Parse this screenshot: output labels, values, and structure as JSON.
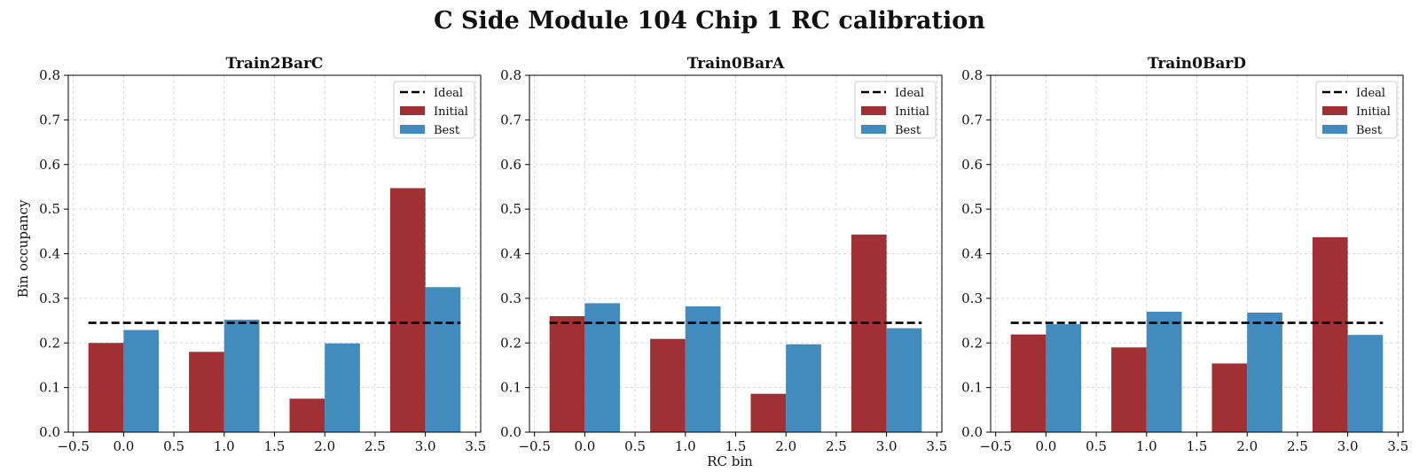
{
  "figure": {
    "title": "C Side Module 104 Chip 1 RC calibration",
    "xlabel": "RC bin",
    "ylabel": "Bin occupancy"
  },
  "colors": {
    "initial": "#a03033",
    "best": "#428bbf",
    "ideal": "#000000",
    "grid": "#cccccc"
  },
  "chart_data": [
    {
      "type": "bar",
      "title": "Train2BarC",
      "x": [
        0,
        1,
        2,
        3
      ],
      "xlim": [
        -0.55,
        3.55
      ],
      "ylim": [
        0,
        0.8
      ],
      "xticks": [
        "−0.5",
        "0.0",
        "0.5",
        "1.0",
        "1.5",
        "2.0",
        "2.5",
        "3.0",
        "3.5"
      ],
      "yticks": [
        "0.0",
        "0.1",
        "0.2",
        "0.3",
        "0.4",
        "0.5",
        "0.6",
        "0.7",
        "0.8"
      ],
      "grid": true,
      "legend": "top-right",
      "ideal": 0.245,
      "series": [
        {
          "name": "Initial",
          "values": [
            0.2,
            0.18,
            0.075,
            0.547
          ]
        },
        {
          "name": "Best",
          "values": [
            0.229,
            0.252,
            0.199,
            0.325
          ]
        }
      ],
      "ideal_label": "Ideal"
    },
    {
      "type": "bar",
      "title": "Train0BarA",
      "x": [
        0,
        1,
        2,
        3
      ],
      "xlim": [
        -0.55,
        3.55
      ],
      "ylim": [
        0,
        0.8
      ],
      "xticks": [
        "−0.5",
        "0.0",
        "0.5",
        "1.0",
        "1.5",
        "2.0",
        "2.5",
        "3.0",
        "3.5"
      ],
      "yticks": [
        "0.0",
        "0.1",
        "0.2",
        "0.3",
        "0.4",
        "0.5",
        "0.6",
        "0.7",
        "0.8"
      ],
      "grid": true,
      "legend": "top-right",
      "ideal": 0.245,
      "series": [
        {
          "name": "Initial",
          "values": [
            0.26,
            0.209,
            0.086,
            0.443
          ]
        },
        {
          "name": "Best",
          "values": [
            0.289,
            0.282,
            0.197,
            0.233
          ]
        }
      ],
      "ideal_label": "Ideal"
    },
    {
      "type": "bar",
      "title": "Train0BarD",
      "x": [
        0,
        1,
        2,
        3
      ],
      "xlim": [
        -0.55,
        3.55
      ],
      "ylim": [
        0,
        0.8
      ],
      "xticks": [
        "−0.5",
        "0.0",
        "0.5",
        "1.0",
        "1.5",
        "2.0",
        "2.5",
        "3.0",
        "3.5"
      ],
      "yticks": [
        "0.0",
        "0.1",
        "0.2",
        "0.3",
        "0.4",
        "0.5",
        "0.6",
        "0.7",
        "0.8"
      ],
      "grid": true,
      "legend": "top-right",
      "ideal": 0.245,
      "series": [
        {
          "name": "Initial",
          "values": [
            0.219,
            0.19,
            0.154,
            0.437
          ]
        },
        {
          "name": "Best",
          "values": [
            0.242,
            0.27,
            0.268,
            0.218
          ]
        }
      ],
      "ideal_label": "Ideal"
    }
  ]
}
